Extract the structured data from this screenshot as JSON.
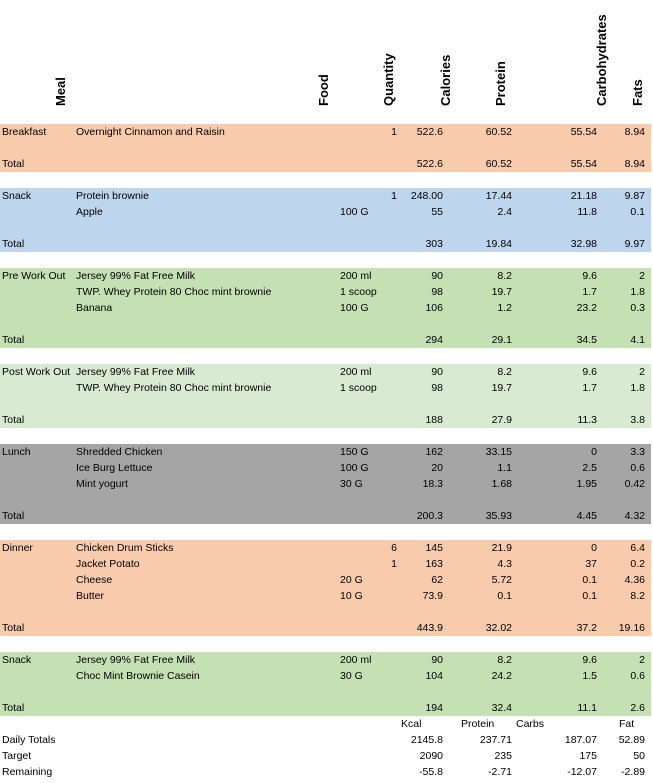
{
  "headers": {
    "meal": "Meal",
    "food": "Food",
    "quantity": "Quantity",
    "calories": "Calories",
    "protein": "Protein",
    "carbohydrates": "Carbohydrates",
    "fats": "Fats"
  },
  "sections": [
    {
      "meal": "Breakfast",
      "color": "#f9cbad",
      "items": [
        {
          "food": "Overnight Cinnamon and Raisin",
          "unit": "",
          "qty": "1",
          "cal": "522.6",
          "pro": "60.52",
          "carb": "55.54",
          "fat": "8.94"
        }
      ],
      "total": {
        "label": "Total",
        "cal": "522.6",
        "pro": "60.52",
        "carb": "55.54",
        "fat": "8.94"
      }
    },
    {
      "meal": "Snack",
      "color": "#bdd6ee",
      "items": [
        {
          "food": "Protein brownie",
          "unit": "",
          "qty": "1",
          "cal": "248.00",
          "pro": "17.44",
          "carb": "21.18",
          "fat": "9.87"
        },
        {
          "food": "Apple",
          "unit": "100 G",
          "qty": "",
          "cal": "55",
          "pro": "2.4",
          "carb": "11.8",
          "fat": "0.1"
        }
      ],
      "total": {
        "label": "Total",
        "cal": "303",
        "pro": "19.84",
        "carb": "32.98",
        "fat": "9.97"
      }
    },
    {
      "meal": "Pre Work Out",
      "color": "#c5e0b3",
      "items": [
        {
          "food": "Jersey 99% Fat Free Milk",
          "unit": "200 ml",
          "qty": "",
          "cal": "90",
          "pro": "8.2",
          "carb": "9.6",
          "fat": "2"
        },
        {
          "food": "TWP. Whey Protein 80 Choc mint brownie",
          "unit": "1 scoop",
          "qty": "",
          "cal": "98",
          "pro": "19.7",
          "carb": "1.7",
          "fat": "1.8"
        },
        {
          "food": "Banana",
          "unit": "100 G",
          "qty": "",
          "cal": "106",
          "pro": "1.2",
          "carb": "23.2",
          "fat": "0.3"
        }
      ],
      "total": {
        "label": "Total",
        "cal": "294",
        "pro": "29.1",
        "carb": "34.5",
        "fat": "4.1"
      }
    },
    {
      "meal": "Post Work Out",
      "color": "#d9ead3",
      "items": [
        {
          "food": "Jersey 99% Fat Free Milk",
          "unit": "200 ml",
          "qty": "",
          "cal": "90",
          "pro": "8.2",
          "carb": "9.6",
          "fat": "2"
        },
        {
          "food": "TWP. Whey Protein 80 Choc mint brownie",
          "unit": "1 scoop",
          "qty": "",
          "cal": "98",
          "pro": "19.7",
          "carb": "1.7",
          "fat": "1.8"
        }
      ],
      "total": {
        "label": "Total",
        "cal": "188",
        "pro": "27.9",
        "carb": "11.3",
        "fat": "3.8"
      }
    },
    {
      "meal": "Lunch",
      "color": "#a5a5a5",
      "items": [
        {
          "food": "Shredded Chicken",
          "unit": "150 G",
          "qty": "",
          "cal": "162",
          "pro": "33.15",
          "carb": "0",
          "fat": "3.3"
        },
        {
          "food": "Ice Burg Lettuce",
          "unit": "100 G",
          "qty": "",
          "cal": "20",
          "pro": "1.1",
          "carb": "2.5",
          "fat": "0.6"
        },
        {
          "food": "Mint yogurt",
          "unit": "30 G",
          "qty": "",
          "cal": "18.3",
          "pro": "1.68",
          "carb": "1.95",
          "fat": "0.42"
        }
      ],
      "total": {
        "label": "Total",
        "cal": "200.3",
        "pro": "35.93",
        "carb": "4.45",
        "fat": "4.32"
      }
    },
    {
      "meal": "Dinner",
      "color": "#f9cbad",
      "items": [
        {
          "food": "Chicken Drum Sticks",
          "unit": "",
          "qty": "6",
          "cal": "145",
          "pro": "21.9",
          "carb": "0",
          "fat": "6.4"
        },
        {
          "food": "Jacket Potato",
          "unit": "",
          "qty": "1",
          "cal": "163",
          "pro": "4.3",
          "carb": "37",
          "fat": "0.2"
        },
        {
          "food": "Cheese",
          "unit": "20 G",
          "qty": "",
          "cal": "62",
          "pro": "5.72",
          "carb": "0.1",
          "fat": "4.36"
        },
        {
          "food": "Butter",
          "unit": "10 G",
          "qty": "",
          "cal": "73.9",
          "pro": "0.1",
          "carb": "0.1",
          "fat": "8.2"
        }
      ],
      "total": {
        "label": "Total",
        "cal": "443.9",
        "pro": "32.02",
        "carb": "37.2",
        "fat": "19.16"
      }
    },
    {
      "meal": "Snack",
      "color": "#c5e0b3",
      "items": [
        {
          "food": "Jersey 99% Fat Free Milk",
          "unit": "200 ml",
          "qty": "",
          "cal": "90",
          "pro": "8.2",
          "carb": "9.6",
          "fat": "2"
        },
        {
          "food": "Choc Mint Brownie Casein",
          "unit": "30 G",
          "qty": "",
          "cal": "104",
          "pro": "24.2",
          "carb": "1.5",
          "fat": "0.6"
        }
      ],
      "total": {
        "label": "Total",
        "cal": "194",
        "pro": "32.4",
        "carb": "11.1",
        "fat": "2.6"
      }
    }
  ],
  "footer": {
    "col_headers": {
      "kcal": "Kcal",
      "protein": "Protein",
      "carbs": "Carbs",
      "fat": "Fat"
    },
    "daily_totals": {
      "label": "Daily Totals",
      "cal": "2145.8",
      "pro": "237.71",
      "carb": "187.07",
      "fat": "52.89"
    },
    "target": {
      "label": "Target",
      "cal": "2090",
      "pro": "235",
      "carb": "175",
      "fat": "50"
    },
    "remaining": {
      "label": "Remaining",
      "cal": "-55.8",
      "pro": "-2.71",
      "carb": "-12.07",
      "fat": "-2.89"
    }
  }
}
